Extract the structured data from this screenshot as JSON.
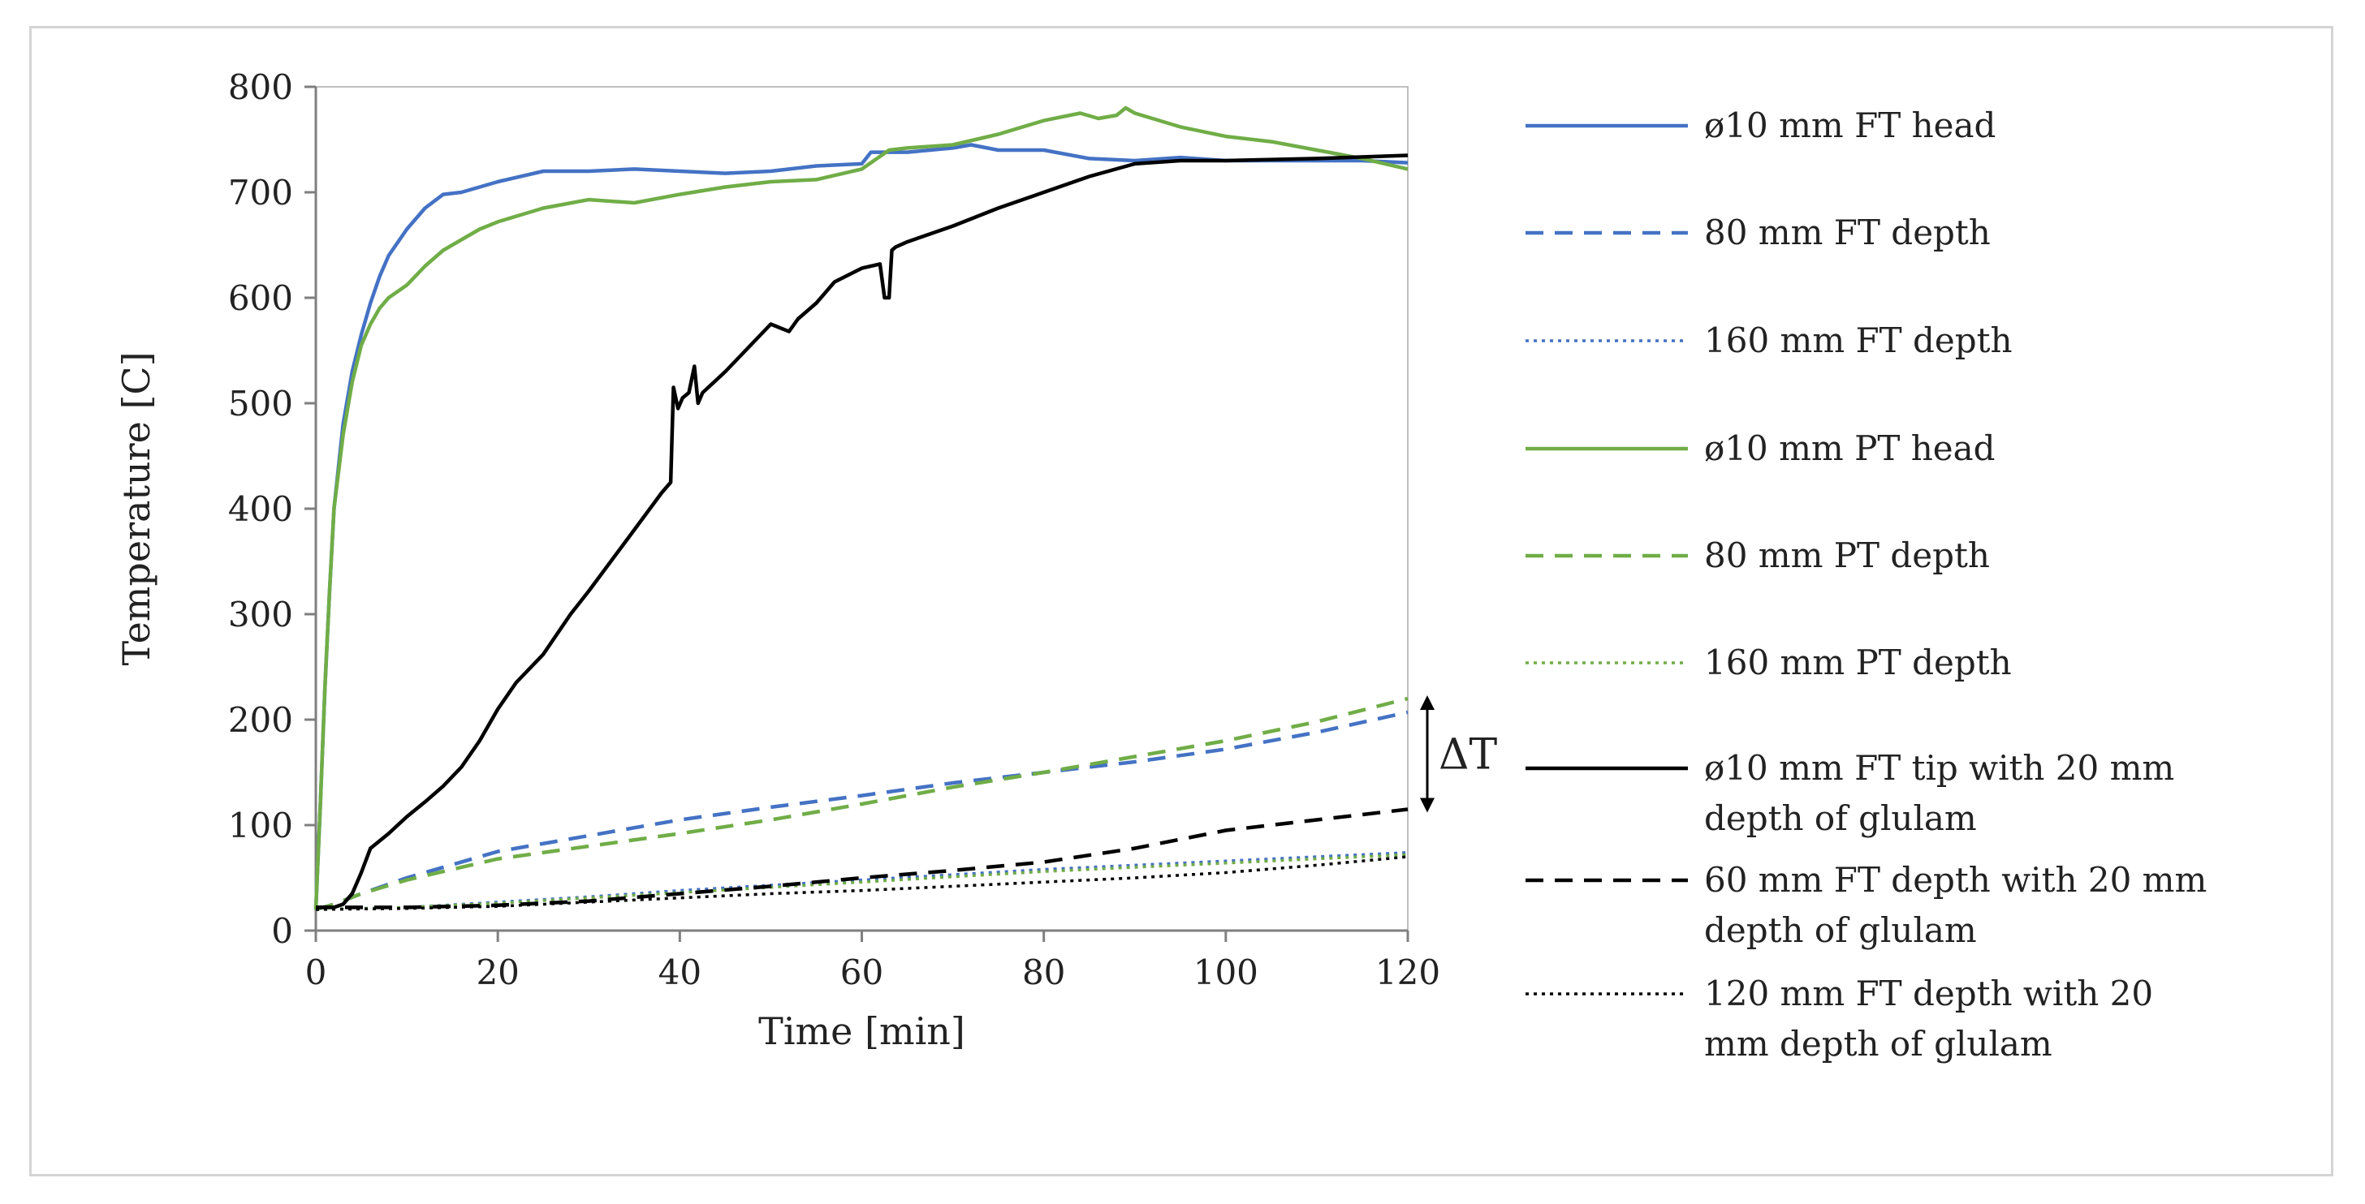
{
  "chart_data": {
    "type": "line",
    "title": "",
    "xlabel": "Time [min]",
    "ylabel": "Temperature [C]",
    "xlim": [
      0,
      120
    ],
    "ylim": [
      0,
      800
    ],
    "xticks": [
      0,
      20,
      40,
      60,
      80,
      100,
      120
    ],
    "yticks": [
      0,
      100,
      200,
      300,
      400,
      500,
      600,
      700,
      800
    ],
    "grid": false,
    "legend_position": "right",
    "annotation": {
      "text": "ΔT",
      "x": 120,
      "y_from": 115,
      "y_to": 220
    },
    "series": [
      {
        "name": "ø10 mm FT head",
        "legend_lines": [
          "ø10 mm FT head"
        ],
        "color": "#4472C4",
        "style": "solid",
        "x": [
          0,
          0.5,
          1,
          1.5,
          2,
          3,
          4,
          5,
          6,
          7,
          8,
          10,
          12,
          14,
          16,
          18,
          20,
          25,
          30,
          35,
          40,
          45,
          50,
          55,
          60,
          61,
          65,
          70,
          72,
          75,
          80,
          85,
          90,
          95,
          100,
          110,
          115,
          120
        ],
        "y": [
          20,
          120,
          230,
          320,
          400,
          480,
          530,
          565,
          595,
          620,
          640,
          665,
          685,
          698,
          700,
          705,
          710,
          720,
          720,
          722,
          720,
          718,
          720,
          725,
          727,
          738,
          738,
          742,
          745,
          740,
          740,
          732,
          730,
          733,
          730,
          730,
          730,
          728
        ]
      },
      {
        "name": "80 mm FT depth",
        "legend_lines": [
          "80 mm FT depth"
        ],
        "color": "#4472C4",
        "style": "dash",
        "x": [
          0,
          2,
          5,
          10,
          20,
          30,
          40,
          50,
          60,
          70,
          80,
          90,
          100,
          110,
          120
        ],
        "y": [
          20,
          25,
          35,
          50,
          75,
          90,
          105,
          117,
          128,
          140,
          150,
          160,
          172,
          188,
          207
        ]
      },
      {
        "name": "160 mm FT depth",
        "legend_lines": [
          "160 mm FT depth"
        ],
        "color": "#4472C4",
        "style": "dot",
        "x": [
          0,
          10,
          20,
          30,
          40,
          50,
          60,
          70,
          80,
          90,
          100,
          110,
          120
        ],
        "y": [
          20,
          22,
          27,
          32,
          38,
          43,
          48,
          53,
          58,
          62,
          66,
          70,
          74
        ]
      },
      {
        "name": "ø10 mm PT head",
        "legend_lines": [
          "ø10 mm PT head"
        ],
        "color": "#70AD47",
        "style": "solid",
        "x": [
          0,
          0.5,
          1,
          1.5,
          2,
          3,
          4,
          5,
          6,
          7,
          8,
          10,
          12,
          14,
          16,
          18,
          20,
          25,
          30,
          35,
          40,
          45,
          50,
          55,
          60,
          63,
          65,
          70,
          75,
          80,
          84,
          86,
          88,
          89,
          90,
          95,
          100,
          105,
          110,
          115,
          120
        ],
        "y": [
          20,
          120,
          230,
          320,
          400,
          470,
          520,
          555,
          575,
          590,
          600,
          612,
          630,
          645,
          655,
          665,
          672,
          685,
          693,
          690,
          698,
          705,
          710,
          712,
          722,
          740,
          742,
          745,
          755,
          768,
          775,
          770,
          773,
          780,
          775,
          762,
          753,
          748,
          740,
          732,
          722
        ]
      },
      {
        "name": "80 mm PT depth",
        "legend_lines": [
          "80 mm PT depth"
        ],
        "color": "#70AD47",
        "style": "dash",
        "x": [
          0,
          2,
          5,
          10,
          20,
          30,
          40,
          50,
          60,
          70,
          80,
          90,
          100,
          110,
          120
        ],
        "y": [
          20,
          25,
          35,
          48,
          68,
          80,
          92,
          105,
          120,
          136,
          150,
          165,
          180,
          198,
          220
        ]
      },
      {
        "name": "160 mm PT depth",
        "legend_lines": [
          "160 mm PT depth"
        ],
        "color": "#70AD47",
        "style": "dot",
        "x": [
          0,
          10,
          20,
          30,
          40,
          50,
          60,
          70,
          80,
          90,
          100,
          110,
          120
        ],
        "y": [
          20,
          22,
          26,
          31,
          36,
          41,
          46,
          51,
          56,
          60,
          64,
          68,
          72
        ]
      },
      {
        "name": "ø10 mm FT tip with 20 mm depth of glulam",
        "legend_lines": [
          "ø10 mm FT tip with 20 mm",
          "depth of glulam"
        ],
        "color": "#000000",
        "style": "solid",
        "x": [
          0,
          1,
          2,
          3,
          4,
          5,
          6,
          8,
          10,
          12,
          14,
          16,
          18,
          20,
          22,
          25,
          28,
          30,
          35,
          38,
          39,
          39.3,
          39.8,
          40.3,
          41,
          41.6,
          42,
          42.5,
          45,
          50,
          52,
          53,
          55,
          57,
          60,
          62,
          62.5,
          63,
          63.3,
          63.7,
          65,
          70,
          75,
          80,
          85,
          90,
          95,
          100,
          110,
          120
        ],
        "y": [
          22,
          22,
          22,
          25,
          35,
          55,
          78,
          92,
          108,
          122,
          137,
          155,
          180,
          210,
          235,
          262,
          300,
          322,
          380,
          415,
          425,
          515,
          495,
          505,
          510,
          535,
          500,
          510,
          530,
          575,
          568,
          580,
          595,
          615,
          628,
          632,
          600,
          600,
          645,
          648,
          653,
          668,
          685,
          700,
          715,
          727,
          730,
          730,
          732,
          735
        ]
      },
      {
        "name": "60 mm FT depth with 20 mm depth of glulam",
        "legend_lines": [
          "60 mm FT depth with 20 mm",
          "depth of glulam"
        ],
        "color": "#000000",
        "style": "dash",
        "x": [
          0,
          5,
          10,
          20,
          30,
          40,
          50,
          60,
          70,
          80,
          90,
          100,
          110,
          120
        ],
        "y": [
          22,
          22,
          22,
          24,
          28,
          35,
          42,
          50,
          57,
          65,
          78,
          95,
          105,
          115
        ]
      },
      {
        "name": "120 mm FT depth with 20 mm depth of glulam",
        "legend_lines": [
          "120 mm FT depth with 20",
          "mm depth of glulam"
        ],
        "color": "#000000",
        "style": "dot",
        "x": [
          0,
          10,
          20,
          30,
          40,
          50,
          60,
          70,
          80,
          90,
          100,
          110,
          120
        ],
        "y": [
          20,
          21,
          23,
          27,
          31,
          35,
          38,
          42,
          46,
          50,
          55,
          62,
          70
        ]
      }
    ]
  }
}
